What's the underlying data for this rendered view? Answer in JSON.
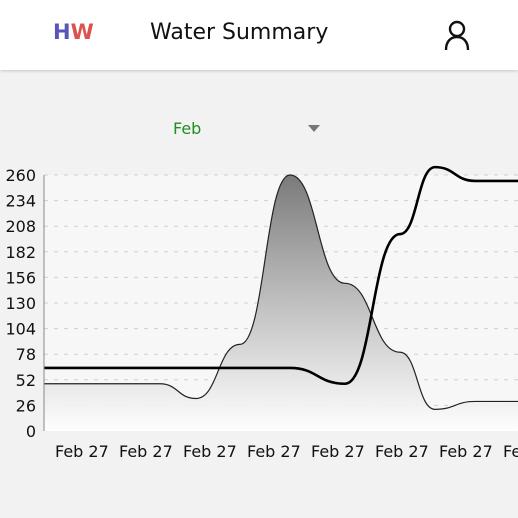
{
  "app_bar": {
    "logo_h": "H",
    "logo_w": "W",
    "title": "Water Summary",
    "user_icon": "user-icon"
  },
  "month_selector": {
    "selected": "Feb",
    "arrow_icon": "dropdown-arrow-icon"
  },
  "colors": {
    "logo_h": "#5a55b8",
    "logo_w": "#d9534f",
    "month_text": "#1f8f1f"
  },
  "chart_data": {
    "type": "line",
    "ylim": [
      0,
      260
    ],
    "y_ticks": [
      "0",
      "26",
      "52",
      "78",
      "104",
      "130",
      "156",
      "182",
      "208",
      "234",
      "260"
    ],
    "x_labels": [
      "Feb 27",
      "Feb 27",
      "Feb 27",
      "Feb 27",
      "Feb 27",
      "Feb 27",
      "Feb 27",
      "Fe"
    ],
    "grid": true,
    "series": [
      {
        "style": "filled-area-thin-line",
        "values": [
          48,
          48,
          48,
          33,
          88,
          260,
          150,
          80,
          22,
          30,
          30
        ]
      },
      {
        "style": "thick-line",
        "values": [
          64,
          64,
          64,
          64,
          64,
          64,
          48,
          200,
          268,
          254,
          254
        ]
      }
    ]
  }
}
